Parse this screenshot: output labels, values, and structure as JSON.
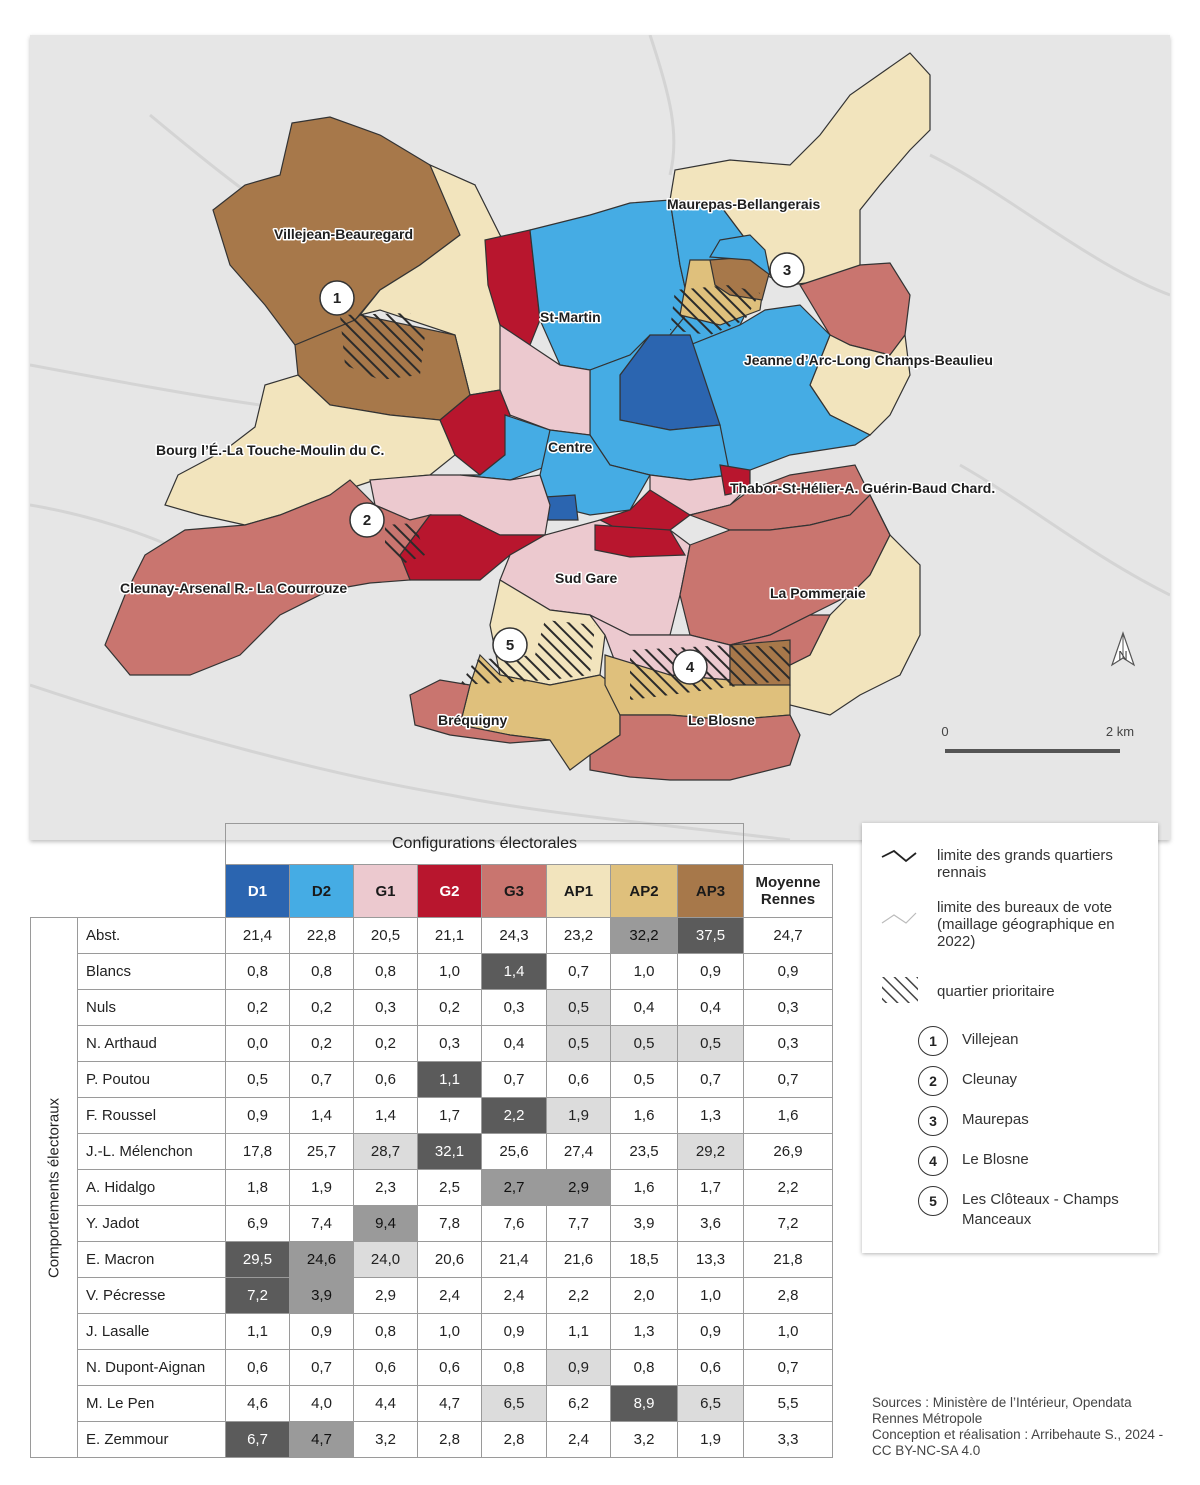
{
  "map": {
    "districts": [
      {
        "id": "villejean",
        "label": "Villejean-Beauregard"
      },
      {
        "id": "maurepas",
        "label": "Maurepas-Bellangerais"
      },
      {
        "id": "stmartin",
        "label": "St-Martin"
      },
      {
        "id": "jeanne",
        "label": "Jeanne d’Arc-Long Champs-Beaulieu"
      },
      {
        "id": "bourg",
        "label": "Bourg l’É.-La Touche-Moulin du C."
      },
      {
        "id": "centre",
        "label": "Centre"
      },
      {
        "id": "thabor",
        "label": "Thabor-St-Hélier-A. Guérin-Baud Chard."
      },
      {
        "id": "cleunay",
        "label": "Cleunay-Arsenal R.- La Courrouze"
      },
      {
        "id": "sudgare",
        "label": "Sud Gare"
      },
      {
        "id": "pommeraie",
        "label": "La Pommeraie"
      },
      {
        "id": "brequigny",
        "label": "Bréquigny"
      },
      {
        "id": "blosne",
        "label": "Le Blosne"
      }
    ],
    "markers": [
      "1",
      "2",
      "3",
      "4",
      "5"
    ],
    "north": "N",
    "scale": {
      "start": "0",
      "end": "2 km"
    },
    "colors": {
      "D1": "#2b65b0",
      "D2": "#45ace4",
      "G1": "#ecc9cf",
      "G2": "#b8162e",
      "G3": "#c9756f",
      "AP1": "#f2e4bd",
      "AP2": "#dfc07c",
      "AP3": "#a7784a",
      "background": "#e6e6e6"
    }
  },
  "table": {
    "caption": "Configurations électorales",
    "side_label": "Comportements électoraux",
    "columns": [
      {
        "label": "D1",
        "color": "#2b65b0",
        "text": "#ffffff"
      },
      {
        "label": "D2",
        "color": "#45ace4",
        "text": "#1a1a1a"
      },
      {
        "label": "G1",
        "color": "#ecc9cf",
        "text": "#1a1a1a"
      },
      {
        "label": "G2",
        "color": "#b8162e",
        "text": "#ffffff"
      },
      {
        "label": "G3",
        "color": "#c9756f",
        "text": "#1a1a1a"
      },
      {
        "label": "AP1",
        "color": "#f2e4bd",
        "text": "#1a1a1a"
      },
      {
        "label": "AP2",
        "color": "#dfc07c",
        "text": "#1a1a1a"
      },
      {
        "label": "AP3",
        "color": "#a7784a",
        "text": "#1a1a1a"
      }
    ],
    "mean_header": [
      "Moyenne",
      "Rennes"
    ],
    "rows": [
      {
        "label": "Abst.",
        "values": [
          "21,4",
          "22,8",
          "20,5",
          "21,1",
          "24,3",
          "23,2",
          "32,2",
          "37,5"
        ],
        "mean": "24,7",
        "hl": [
          "",
          "",
          "",
          "",
          "",
          "",
          "mid",
          "dark"
        ]
      },
      {
        "label": "Blancs",
        "values": [
          "0,8",
          "0,8",
          "0,8",
          "1,0",
          "1,4",
          "0,7",
          "1,0",
          "0,9"
        ],
        "mean": "0,9",
        "hl": [
          "",
          "",
          "",
          "",
          "dark",
          "",
          "",
          ""
        ]
      },
      {
        "label": "Nuls",
        "values": [
          "0,2",
          "0,2",
          "0,3",
          "0,2",
          "0,3",
          "0,5",
          "0,4",
          "0,4"
        ],
        "mean": "0,3",
        "hl": [
          "",
          "",
          "",
          "",
          "",
          "light",
          "",
          ""
        ]
      },
      {
        "label": "N. Arthaud",
        "values": [
          "0,0",
          "0,2",
          "0,2",
          "0,3",
          "0,4",
          "0,5",
          "0,5",
          "0,5"
        ],
        "mean": "0,3",
        "hl": [
          "",
          "",
          "",
          "",
          "",
          "light",
          "light",
          "light"
        ]
      },
      {
        "label": "P. Poutou",
        "values": [
          "0,5",
          "0,7",
          "0,6",
          "1,1",
          "0,7",
          "0,6",
          "0,5",
          "0,7"
        ],
        "mean": "0,7",
        "hl": [
          "",
          "",
          "",
          "dark",
          "",
          "",
          "",
          ""
        ]
      },
      {
        "label": "F. Roussel",
        "values": [
          "0,9",
          "1,4",
          "1,4",
          "1,7",
          "2,2",
          "1,9",
          "1,6",
          "1,3"
        ],
        "mean": "1,6",
        "hl": [
          "",
          "",
          "",
          "",
          "dark",
          "light",
          "",
          ""
        ]
      },
      {
        "label": "J.-L. Mélenchon",
        "values": [
          "17,8",
          "25,7",
          "28,7",
          "32,1",
          "25,6",
          "27,4",
          "23,5",
          "29,2"
        ],
        "mean": "26,9",
        "hl": [
          "",
          "",
          "light",
          "dark",
          "",
          "",
          "",
          "light"
        ]
      },
      {
        "label": "A. Hidalgo",
        "values": [
          "1,8",
          "1,9",
          "2,3",
          "2,5",
          "2,7",
          "2,9",
          "1,6",
          "1,7"
        ],
        "mean": "2,2",
        "hl": [
          "",
          "",
          "",
          "",
          "mid",
          "mid",
          "",
          ""
        ]
      },
      {
        "label": "Y. Jadot",
        "values": [
          "6,9",
          "7,4",
          "9,4",
          "7,8",
          "7,6",
          "7,7",
          "3,9",
          "3,6"
        ],
        "mean": "7,2",
        "hl": [
          "",
          "",
          "mid",
          "",
          "",
          "",
          "",
          ""
        ]
      },
      {
        "label": "E. Macron",
        "values": [
          "29,5",
          "24,6",
          "24,0",
          "20,6",
          "21,4",
          "21,6",
          "18,5",
          "13,3"
        ],
        "mean": "21,8",
        "hl": [
          "dark",
          "mid",
          "light",
          "",
          "",
          "",
          "",
          ""
        ]
      },
      {
        "label": "V. Pécresse",
        "values": [
          "7,2",
          "3,9",
          "2,9",
          "2,4",
          "2,4",
          "2,2",
          "2,0",
          "1,0"
        ],
        "mean": "2,8",
        "hl": [
          "dark",
          "mid",
          "",
          "",
          "",
          "",
          "",
          ""
        ]
      },
      {
        "label": "J. Lasalle",
        "values": [
          "1,1",
          "0,9",
          "0,8",
          "1,0",
          "0,9",
          "1,1",
          "1,3",
          "0,9"
        ],
        "mean": "1,0",
        "hl": [
          "",
          "",
          "",
          "",
          "",
          "",
          "",
          ""
        ]
      },
      {
        "label": "N. Dupont-Aignan",
        "values": [
          "0,6",
          "0,7",
          "0,6",
          "0,6",
          "0,8",
          "0,9",
          "0,8",
          "0,6"
        ],
        "mean": "0,7",
        "hl": [
          "",
          "",
          "",
          "",
          "",
          "light",
          "",
          ""
        ]
      },
      {
        "label": "M. Le Pen",
        "values": [
          "4,6",
          "4,0",
          "4,4",
          "4,7",
          "6,5",
          "6,2",
          "8,9",
          "6,5"
        ],
        "mean": "5,5",
        "hl": [
          "",
          "",
          "",
          "",
          "light",
          "",
          "dark",
          "light"
        ]
      },
      {
        "label": "E. Zemmour",
        "values": [
          "6,7",
          "4,7",
          "3,2",
          "2,8",
          "2,8",
          "2,4",
          "3,2",
          "1,9"
        ],
        "mean": "3,3",
        "hl": [
          "dark",
          "mid",
          "",
          "",
          "",
          "",
          "",
          ""
        ]
      }
    ]
  },
  "legend": {
    "grands_quartiers": "limite des grands quartiers rennais",
    "bureaux": "limite des bureaux de vote (maillage géographique en 2022)",
    "prioritaire": "quartier prioritaire",
    "qp": [
      {
        "num": "1",
        "name": "Villejean"
      },
      {
        "num": "2",
        "name": "Cleunay"
      },
      {
        "num": "3",
        "name": "Maurepas"
      },
      {
        "num": "4",
        "name": "Le Blosne"
      },
      {
        "num": "5",
        "name": "Les Clôteaux - Champs Manceaux"
      }
    ]
  },
  "sources": {
    "line1": "Sources : Ministère de l’Intérieur, Opendata Rennes Métropole",
    "line2": "Conception et réalisation : Arribehaute S., 2024 - CC BY-NC-SA 4.0"
  }
}
